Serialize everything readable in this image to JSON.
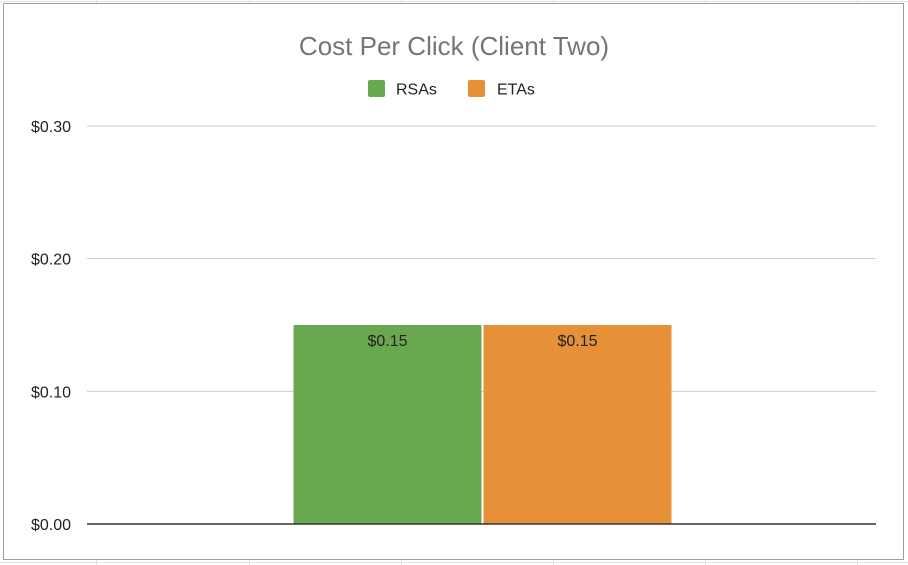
{
  "chart_data": {
    "type": "bar",
    "title": "Cost Per Click (Client Two)",
    "xlabel": "",
    "ylabel": "",
    "categories": [
      ""
    ],
    "series": [
      {
        "name": "RSAs",
        "values": [
          0.15
        ],
        "color": "#6aa84f",
        "data_labels": [
          "$0.15"
        ]
      },
      {
        "name": "ETAs",
        "values": [
          0.15
        ],
        "color": "#e69138",
        "data_labels": [
          "$0.15"
        ]
      }
    ],
    "ylim": [
      0,
      0.3
    ],
    "y_ticks": [
      0,
      0.1,
      0.2,
      0.3
    ],
    "y_tick_labels": [
      "$0.00",
      "$0.10",
      "$0.20",
      "$0.30"
    ],
    "grid": true,
    "legend_position": "top"
  }
}
